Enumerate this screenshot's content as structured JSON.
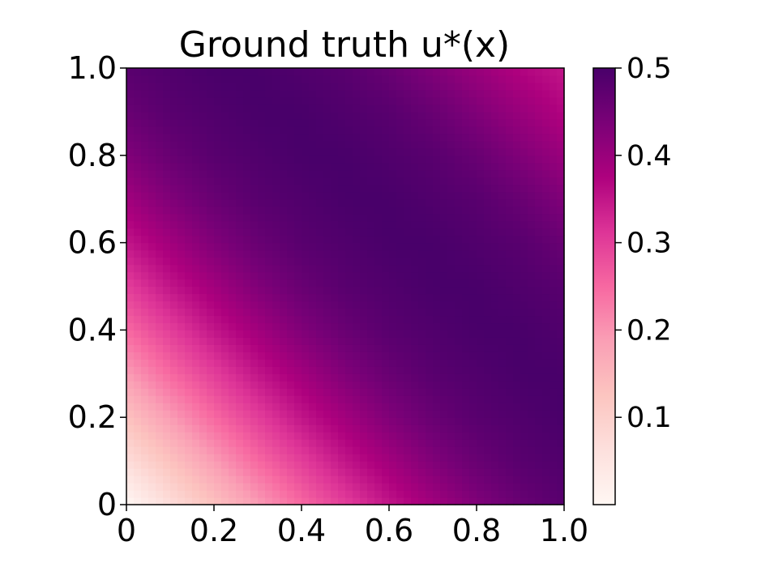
{
  "chart_data": {
    "type": "heatmap",
    "title": "Ground truth u*(x)",
    "xlabel": "",
    "ylabel": "",
    "xlim": [
      0,
      1
    ],
    "ylim": [
      0,
      1
    ],
    "x_ticks": [
      0,
      0.2,
      0.4,
      0.6,
      0.8,
      1.0
    ],
    "x_tick_labels": [
      "0",
      "0.2",
      "0.4",
      "0.6",
      "0.8",
      "1.0"
    ],
    "y_ticks": [
      0,
      0.2,
      0.4,
      0.6,
      0.8,
      1.0
    ],
    "y_tick_labels": [
      "0",
      "0.2",
      "0.4",
      "0.6",
      "0.8",
      "1.0"
    ],
    "colormap": "RdPu",
    "colormap_stops": [
      "#fff7f3",
      "#fde0dd",
      "#fcc5c0",
      "#fa9fb5",
      "#f768a1",
      "#dd3497",
      "#ae017e",
      "#7a0177",
      "#49006a"
    ],
    "colorbar": {
      "range": [
        0,
        0.5
      ],
      "ticks": [
        0.1,
        0.2,
        0.3,
        0.4,
        0.5
      ],
      "tick_labels": [
        "0.1",
        "0.2",
        "0.3",
        "0.4",
        "0.5"
      ]
    },
    "value_range": [
      0,
      0.5
    ],
    "grid": false,
    "sample_x": [
      0.0,
      0.1,
      0.2,
      0.3,
      0.4,
      0.5,
      0.6,
      0.7,
      0.8,
      0.9,
      1.0
    ],
    "sample_y": [
      0.0,
      0.1,
      0.2,
      0.3,
      0.4,
      0.5,
      0.6,
      0.7,
      0.8,
      0.9,
      1.0
    ],
    "values": [
      [
        0.0,
        0.07,
        0.13,
        0.19,
        0.25,
        0.3,
        0.35,
        0.39,
        0.43,
        0.46,
        0.48
      ],
      [
        0.07,
        0.13,
        0.19,
        0.25,
        0.3,
        0.35,
        0.39,
        0.43,
        0.46,
        0.48,
        0.49
      ],
      [
        0.13,
        0.19,
        0.25,
        0.3,
        0.35,
        0.39,
        0.43,
        0.46,
        0.48,
        0.49,
        0.5
      ],
      [
        0.19,
        0.25,
        0.3,
        0.35,
        0.39,
        0.43,
        0.46,
        0.48,
        0.49,
        0.5,
        0.5
      ],
      [
        0.25,
        0.3,
        0.35,
        0.39,
        0.43,
        0.46,
        0.48,
        0.49,
        0.5,
        0.5,
        0.49
      ],
      [
        0.3,
        0.35,
        0.39,
        0.43,
        0.46,
        0.48,
        0.49,
        0.5,
        0.5,
        0.49,
        0.48
      ],
      [
        0.35,
        0.39,
        0.43,
        0.46,
        0.48,
        0.49,
        0.5,
        0.5,
        0.49,
        0.48,
        0.46
      ],
      [
        0.39,
        0.43,
        0.46,
        0.48,
        0.49,
        0.5,
        0.5,
        0.49,
        0.48,
        0.46,
        0.43
      ],
      [
        0.43,
        0.46,
        0.48,
        0.49,
        0.5,
        0.5,
        0.49,
        0.48,
        0.46,
        0.43,
        0.4
      ],
      [
        0.46,
        0.48,
        0.49,
        0.5,
        0.5,
        0.49,
        0.48,
        0.46,
        0.43,
        0.4,
        0.37
      ],
      [
        0.48,
        0.49,
        0.5,
        0.5,
        0.49,
        0.48,
        0.46,
        0.43,
        0.4,
        0.37,
        0.35
      ]
    ]
  }
}
